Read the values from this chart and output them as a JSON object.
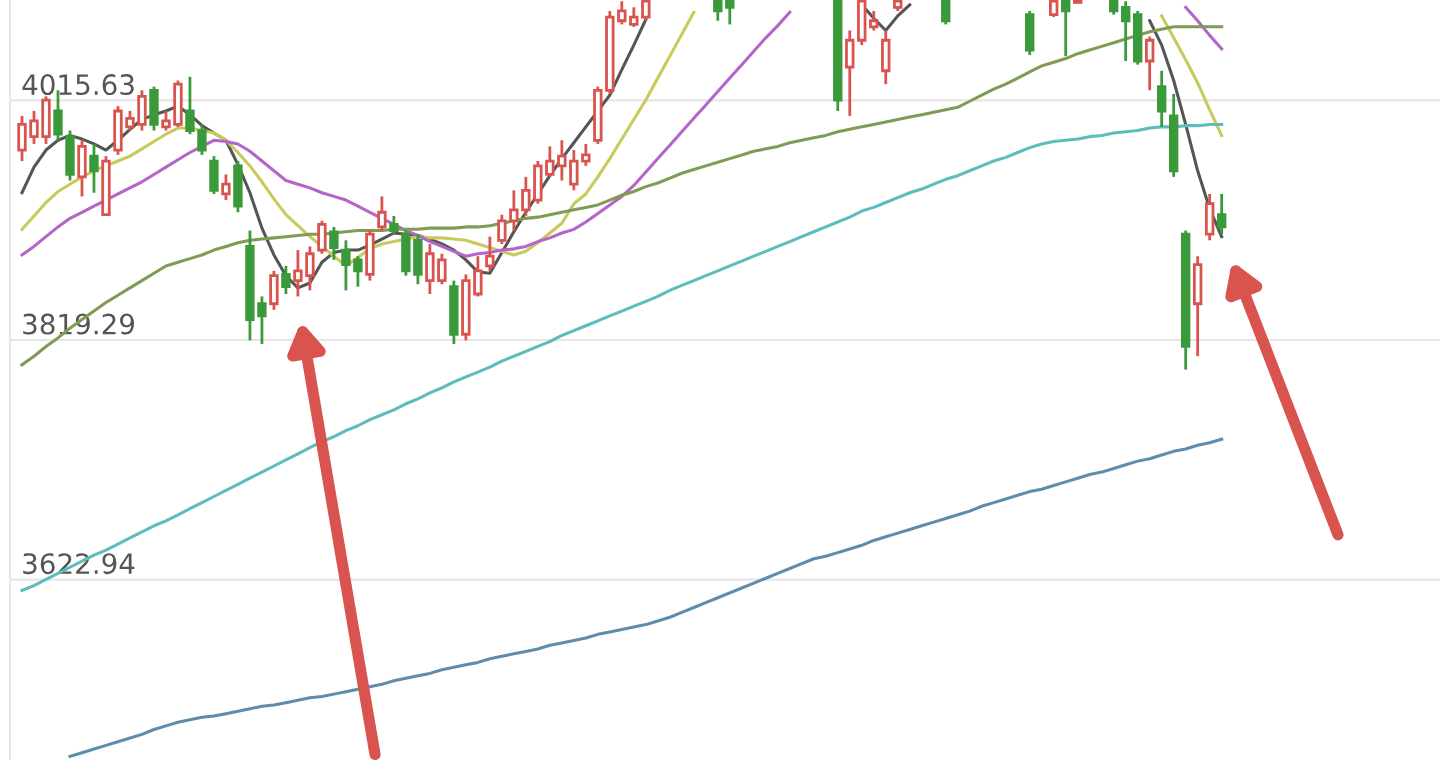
{
  "chart_data": {
    "type": "candlestick",
    "categories": [
      null,
      null,
      null,
      null,
      null,
      null,
      null,
      null,
      null,
      null,
      null,
      null,
      null,
      null,
      null,
      null,
      null,
      null,
      null,
      null,
      null,
      null,
      null,
      null,
      null,
      null,
      null,
      null,
      null,
      null,
      null,
      null,
      null,
      null,
      null,
      null,
      null,
      null,
      null,
      null,
      null,
      null,
      null,
      null,
      null,
      null,
      null,
      null,
      null,
      null,
      null,
      null,
      null,
      null,
      null,
      null,
      null,
      null,
      null,
      null,
      null,
      null,
      null,
      null,
      null,
      null,
      null,
      null,
      null,
      null,
      null,
      null,
      null,
      null,
      null,
      null,
      null,
      null,
      null,
      null,
      null,
      null,
      null,
      null,
      null,
      null,
      null,
      null,
      null,
      null,
      null,
      null,
      null,
      null,
      null,
      null,
      null,
      null,
      null,
      null,
      null
    ],
    "colors": [
      "#d9534f",
      "#d9534f",
      "#d9534f",
      "#3a9a3a",
      "#3a9a3a",
      "#d9534f",
      "#3a9a3a",
      "#d9534f",
      "#d9534f",
      "#d9534f",
      "#d9534f",
      "#3a9a3a",
      "#d9534f",
      "#d9534f",
      "#3a9a3a",
      "#3a9a3a",
      "#3a9a3a",
      "#d9534f",
      "#3a9a3a",
      "#3a9a3a",
      "#3a9a3a",
      "#d9534f",
      "#3a9a3a",
      "#d9534f",
      "#d9534f",
      "#d9534f",
      "#3a9a3a",
      "#3a9a3a",
      "#3a9a3a",
      "#d9534f",
      "#d9534f",
      "#3a9a3a",
      "#3a9a3a",
      "#3a9a3a",
      "#d9534f",
      "#d9534f",
      "#3a9a3a",
      "#d9534f",
      "#d9534f",
      "#d9534f",
      "#d9534f",
      "#d9534f",
      "#d9534f",
      "#d9534f",
      "#d9534f",
      "#d9534f",
      "#d9534f",
      "#d9534f",
      "#d9534f",
      "#d9534f",
      "#d9534f",
      "#d9534f",
      "#d9534f",
      null,
      null,
      null,
      null,
      null,
      "#3a9a3a",
      "#3a9a3a",
      null,
      null,
      null,
      null,
      null,
      null,
      null,
      null,
      "#3a9a3a",
      "#d9534f",
      "#d9534f",
      "#d9534f",
      "#d9534f",
      "#d9534f",
      null,
      null,
      null,
      "#3a9a3a",
      null,
      null,
      null,
      null,
      null,
      null,
      "#3a9a3a",
      null,
      "#d9534f",
      "#3a9a3a",
      "#d9534f",
      null,
      null,
      "#3a9a3a",
      "#3a9a3a",
      "#3a9a3a",
      "#d9534f",
      "#3a9a3a",
      "#3a9a3a",
      "#3a9a3a",
      "#d9534f",
      "#d9534f",
      "#3a9a3a"
    ],
    "ohlc": [
      [
        3975,
        4003,
        3966,
        3996
      ],
      [
        3986,
        4007,
        3980,
        3999
      ],
      [
        3986,
        4019,
        3980,
        4016
      ],
      [
        4007,
        4024,
        3983,
        3988
      ],
      [
        3986,
        3991,
        3950,
        3955
      ],
      [
        3953,
        3983,
        3937,
        3978
      ],
      [
        3970,
        3980,
        3940,
        3958
      ],
      [
        3922,
        3970,
        3921,
        3966
      ],
      [
        3975,
        4011,
        3971,
        4007
      ],
      [
        3994,
        4007,
        3991,
        4001
      ],
      [
        3996,
        4024,
        3991,
        4019
      ],
      [
        4024,
        4027,
        3991,
        3996
      ],
      [
        3994,
        4007,
        3991,
        3999
      ],
      [
        3996,
        4032,
        3994,
        4029
      ],
      [
        4007,
        4035,
        3988,
        3991
      ],
      [
        3991,
        3996,
        3971,
        3975
      ],
      [
        3966,
        3970,
        3939,
        3942
      ],
      [
        3939,
        3955,
        3934,
        3947
      ],
      [
        3962,
        3966,
        3924,
        3929
      ],
      [
        3896,
        3909,
        3819,
        3836
      ],
      [
        3849,
        3855,
        3816,
        3839
      ],
      [
        3849,
        3876,
        3844,
        3872
      ],
      [
        3873,
        3880,
        3857,
        3863
      ],
      [
        3868,
        3893,
        3855,
        3876
      ],
      [
        3872,
        3896,
        3860,
        3890
      ],
      [
        3893,
        3917,
        3890,
        3914
      ],
      [
        3908,
        3912,
        3885,
        3895
      ],
      [
        3893,
        3901,
        3860,
        3881
      ],
      [
        3885,
        3888,
        3863,
        3876
      ],
      [
        3873,
        3909,
        3868,
        3906
      ],
      [
        3912,
        3937,
        3909,
        3924
      ],
      [
        3914,
        3921,
        3906,
        3909
      ],
      [
        3906,
        3909,
        3872,
        3876
      ],
      [
        3901,
        3906,
        3865,
        3873
      ],
      [
        3868,
        3898,
        3857,
        3890
      ],
      [
        3868,
        3890,
        3865,
        3885
      ],
      [
        3863,
        3868,
        3816,
        3824
      ],
      [
        3824,
        3873,
        3819,
        3868
      ],
      [
        3857,
        3888,
        3855,
        3876
      ],
      [
        3880,
        3904,
        3876,
        3888
      ],
      [
        3901,
        3922,
        3898,
        3917
      ],
      [
        3917,
        3942,
        3909,
        3926
      ],
      [
        3926,
        3953,
        3921,
        3942
      ],
      [
        3934,
        3966,
        3931,
        3962
      ],
      [
        3955,
        3978,
        3953,
        3966
      ],
      [
        3962,
        3983,
        3950,
        3970
      ],
      [
        3947,
        3975,
        3942,
        3966
      ],
      [
        3966,
        3980,
        3962,
        3971
      ],
      [
        3983,
        4027,
        3980,
        4024
      ],
      [
        4024,
        4089,
        4021,
        4084
      ],
      [
        4081,
        4097,
        4078,
        4089
      ],
      [
        4078,
        4092,
        4076,
        4084
      ],
      [
        4084,
        4097,
        4081,
        4097
      ],
      null,
      null,
      null,
      null,
      null,
      [
        4097,
        4097,
        4081,
        4089
      ],
      [
        4097,
        4097,
        4078,
        4092
      ],
      null,
      null,
      null,
      null,
      null,
      null,
      null,
      null,
      [
        4097,
        4097,
        4007,
        4016
      ],
      [
        4043,
        4073,
        4003,
        4065
      ],
      [
        4065,
        4097,
        4061,
        4097
      ],
      [
        4076,
        4089,
        4073,
        4081
      ],
      [
        4040,
        4073,
        4029,
        4065
      ],
      [
        4092,
        4097,
        4089,
        4097
      ],
      null,
      null,
      null,
      [
        4097,
        4097,
        4078,
        4081
      ],
      null,
      null,
      null,
      null,
      null,
      null,
      [
        4086,
        4089,
        4053,
        4057
      ],
      null,
      [
        4086,
        4097,
        4084,
        4097
      ],
      [
        4097,
        4097,
        4052,
        4089
      ],
      [
        4096,
        4097,
        4096,
        4097
      ],
      null,
      null,
      [
        4097,
        4097,
        4086,
        4089
      ],
      [
        4092,
        4097,
        4048,
        4081
      ],
      [
        4086,
        4089,
        4045,
        4048
      ],
      [
        4048,
        4068,
        4024,
        4065
      ],
      [
        4027,
        4040,
        3994,
        4007
      ],
      [
        4003,
        4021,
        3953,
        3958
      ],
      [
        3906,
        3909,
        3795,
        3814
      ],
      [
        3849,
        3888,
        3806,
        3881
      ],
      [
        3906,
        3939,
        3901,
        3931
      ],
      [
        3922,
        3939,
        3906,
        3912
      ]
    ],
    "series": [
      {
        "type": "line",
        "color": "#555555",
        "values": [
          3940,
          3961,
          3975,
          3983,
          3987,
          3984,
          3980,
          3975,
          3983,
          3992,
          4000,
          4004,
          4007,
          4011,
          4004,
          3995,
          3989,
          3983,
          3963,
          3940,
          3911,
          3889,
          3872,
          3862,
          3866,
          3883,
          3891,
          3893,
          3893,
          3897,
          3902,
          3907,
          3906,
          3905,
          3902,
          3898,
          3893,
          3885,
          3875,
          3874,
          3891,
          3908,
          3924,
          3939,
          3954,
          3968,
          3981,
          3994,
          4007,
          4020,
          4041,
          4061,
          4082,
          null,
          null,
          null,
          null,
          null,
          null,
          null,
          null,
          null,
          null,
          null,
          null,
          null,
          null,
          null,
          null,
          null,
          4094,
          4083,
          4073,
          4085,
          4094,
          null,
          null,
          null,
          null,
          null,
          null,
          null,
          null,
          null,
          null,
          null,
          null,
          null,
          null,
          null,
          null,
          null,
          null,
          null,
          4081,
          4061,
          4032,
          3996,
          3958,
          3927,
          3904
        ]
      },
      {
        "type": "line",
        "color": "#c9c95c",
        "values": [
          3910,
          3921,
          3932,
          3941,
          3947,
          3953,
          3958,
          3962,
          3966,
          3970,
          3976,
          3982,
          3988,
          3993,
          3993,
          3991,
          3989,
          3983,
          3973,
          3962,
          3949,
          3935,
          3922,
          3913,
          3904,
          3896,
          3888,
          3880,
          3887,
          3894,
          3898,
          3900,
          3902,
          3904,
          3903,
          3903,
          3902,
          3901,
          3898,
          3895,
          3892,
          3889,
          3892,
          3899,
          3907,
          3915,
          3931,
          3939,
          3953,
          3968,
          3984,
          4000,
          4016,
          4034,
          4052,
          4070,
          4088,
          null,
          null,
          null,
          null,
          null,
          null,
          null,
          null,
          null,
          null,
          null,
          null,
          null,
          null,
          null,
          null,
          null,
          null,
          null,
          null,
          null,
          null,
          null,
          null,
          null,
          null,
          null,
          null,
          null,
          null,
          null,
          null,
          null,
          null,
          null,
          null,
          null,
          null,
          4085,
          4067,
          4049,
          4030,
          4008,
          3987
        ]
      },
      {
        "type": "line",
        "color": "#b565c9",
        "values": [
          3889,
          3896,
          3904,
          3912,
          3919,
          3924,
          3929,
          3934,
          3939,
          3944,
          3949,
          3955,
          3961,
          3967,
          3973,
          3978,
          3983,
          3982,
          3980,
          3974,
          3966,
          3958,
          3950,
          3947,
          3944,
          3940,
          3937,
          3934,
          3929,
          3924,
          3919,
          3914,
          3909,
          3905,
          3900,
          3896,
          3892,
          3888,
          3890,
          3891,
          3893,
          3894,
          3896,
          3900,
          3903,
          3907,
          3910,
          3916,
          3923,
          3930,
          3937,
          3946,
          3957,
          3968,
          3979,
          3990,
          4001,
          4012,
          4023,
          4034,
          4045,
          4056,
          4067,
          4077,
          4088,
          null,
          null,
          null,
          null,
          null,
          null,
          null,
          null,
          null,
          null,
          null,
          null,
          null,
          null,
          null,
          null,
          null,
          null,
          null,
          null,
          null,
          null,
          null,
          null,
          null,
          null,
          null,
          null,
          null,
          null,
          null,
          null,
          4092,
          4081,
          4069,
          4058
        ]
      },
      {
        "type": "line",
        "color": "#7e9c55",
        "values": [
          3799,
          3806,
          3814,
          3821,
          3829,
          3836,
          3843,
          3850,
          3856,
          3862,
          3868,
          3874,
          3880,
          3883,
          3886,
          3889,
          3893,
          3896,
          3899,
          3901,
          3902,
          3903,
          3904,
          3905,
          3906,
          3906,
          3907,
          3908,
          3909,
          3909,
          3909,
          3910,
          3910,
          3910,
          3911,
          3911,
          3911,
          3912,
          3912,
          3913,
          3915,
          3917,
          3919,
          3920,
          3922,
          3924,
          3926,
          3928,
          3930,
          3934,
          3938,
          3941,
          3945,
          3948,
          3952,
          3956,
          3959,
          3962,
          3965,
          3968,
          3971,
          3974,
          3976,
          3978,
          3981,
          3983,
          3985,
          3987,
          3990,
          3992,
          3994,
          3996,
          3998,
          4000,
          4002,
          4004,
          4006,
          4008,
          4010,
          4015,
          4020,
          4025,
          4029,
          4034,
          4039,
          4044,
          4047,
          4050,
          4054,
          4057,
          4060,
          4063,
          4066,
          4069,
          4072,
          4074,
          4076,
          4076,
          4076,
          4076,
          4076
        ]
      },
      {
        "type": "line",
        "color": "#5dbdbd",
        "values": [
          3614,
          3618,
          3623,
          3628,
          3633,
          3638,
          3643,
          3647,
          3652,
          3657,
          3662,
          3667,
          3671,
          3676,
          3681,
          3686,
          3691,
          3696,
          3701,
          3706,
          3711,
          3716,
          3721,
          3726,
          3731,
          3736,
          3740,
          3745,
          3749,
          3754,
          3758,
          3762,
          3767,
          3771,
          3776,
          3780,
          3785,
          3789,
          3793,
          3797,
          3802,
          3806,
          3810,
          3814,
          3818,
          3823,
          3827,
          3831,
          3835,
          3839,
          3843,
          3847,
          3851,
          3855,
          3860,
          3864,
          3868,
          3872,
          3876,
          3880,
          3884,
          3888,
          3892,
          3896,
          3900,
          3904,
          3908,
          3912,
          3916,
          3920,
          3925,
          3928,
          3932,
          3936,
          3940,
          3943,
          3947,
          3951,
          3954,
          3958,
          3962,
          3966,
          3969,
          3973,
          3977,
          3980,
          3982,
          3983,
          3984,
          3986,
          3987,
          3989,
          3990,
          3991,
          3993,
          3994,
          3994,
          3995,
          3995,
          3996,
          3996
        ]
      },
      {
        "type": "line",
        "color": "#5f8cab",
        "values": [
          null,
          null,
          null,
          null,
          3478,
          3481,
          3484,
          3487,
          3490,
          3493,
          3496,
          3500,
          3503,
          3506,
          3508,
          3510,
          3511,
          3513,
          3515,
          3517,
          3519,
          3520,
          3522,
          3524,
          3526,
          3527,
          3529,
          3531,
          3533,
          3535,
          3537,
          3540,
          3542,
          3544,
          3546,
          3549,
          3551,
          3553,
          3555,
          3558,
          3560,
          3562,
          3564,
          3566,
          3569,
          3571,
          3573,
          3575,
          3578,
          3580,
          3582,
          3584,
          3586,
          3589,
          3592,
          3596,
          3600,
          3604,
          3608,
          3612,
          3616,
          3620,
          3624,
          3628,
          3632,
          3636,
          3640,
          3642,
          3645,
          3648,
          3651,
          3655,
          3658,
          3661,
          3664,
          3667,
          3670,
          3673,
          3676,
          3679,
          3683,
          3686,
          3689,
          3692,
          3695,
          3697,
          3700,
          3703,
          3706,
          3709,
          3711,
          3714,
          3717,
          3720,
          3722,
          3725,
          3728,
          3730,
          3733,
          3735,
          3738
        ]
      }
    ],
    "ylim": [
      3475,
      4098
    ],
    "yticks": [
      4015.63,
      3819.29,
      3622.94
    ],
    "grid": "y"
  }
}
